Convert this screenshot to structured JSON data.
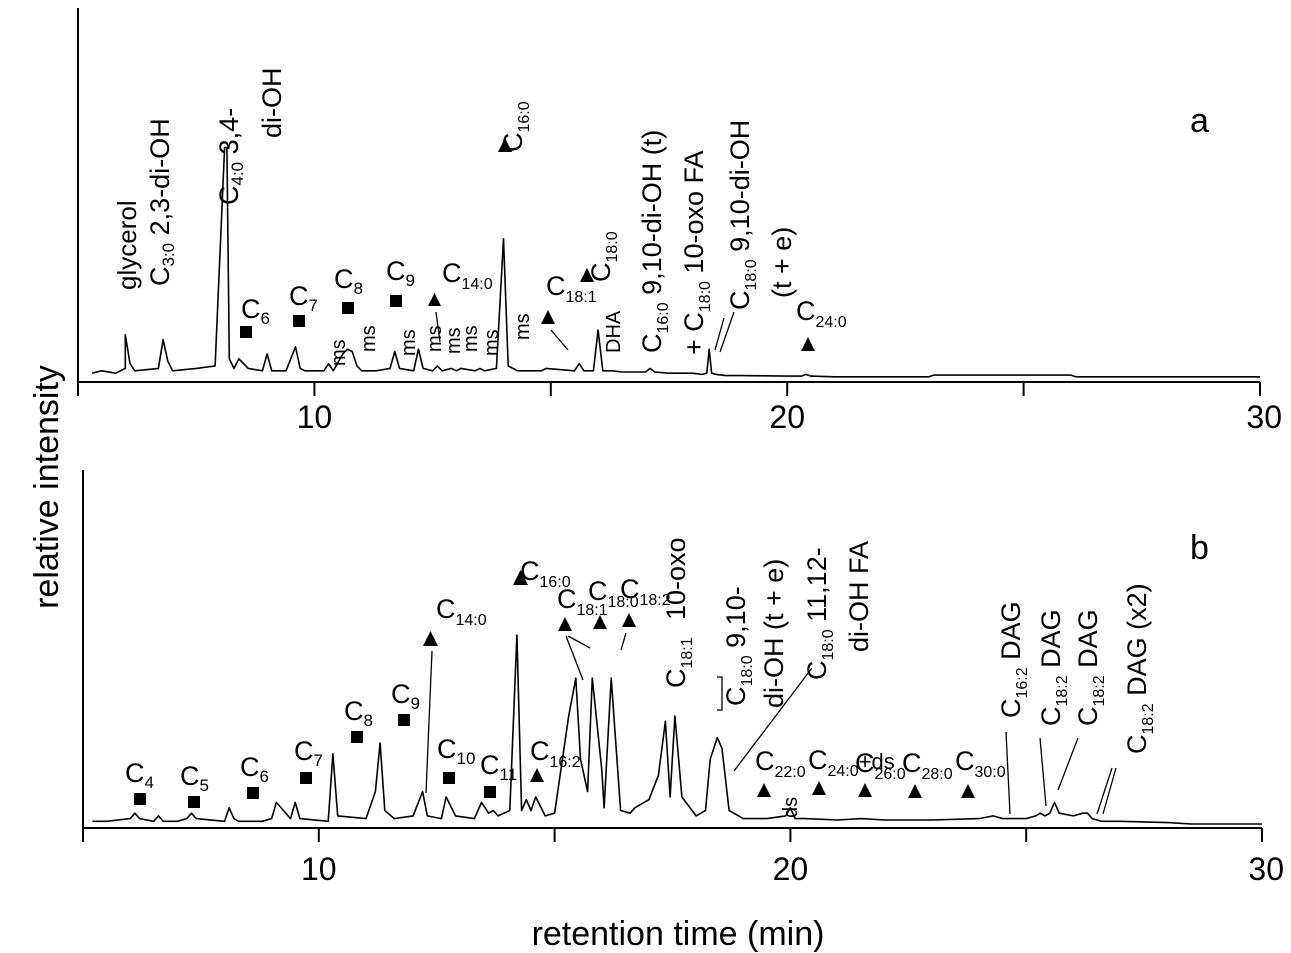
{
  "figure": {
    "ylabel": "relative intensity",
    "xlabel": "retention time (min)"
  },
  "chart_data": [
    {
      "type": "line",
      "panel_label": "a",
      "xlim": [
        5,
        30
      ],
      "xticks": [
        10,
        20,
        30
      ],
      "x": [
        5.3,
        5.5,
        5.8,
        6.0,
        6.0,
        6.1,
        6.2,
        6.7,
        6.8,
        6.9,
        7.0,
        7.5,
        7.9,
        8.1,
        8.15,
        8.2,
        8.3,
        8.4,
        8.5,
        8.6,
        8.9,
        9.0,
        9.1,
        9.4,
        9.6,
        9.7,
        9.8,
        10.2,
        10.3,
        10.4,
        10.6,
        10.7,
        10.8,
        10.9,
        11.0,
        11.3,
        11.6,
        11.7,
        11.8,
        12.1,
        12.2,
        12.3,
        12.5,
        12.6,
        12.7,
        12.9,
        13.0,
        13.1,
        13.4,
        13.5,
        13.6,
        13.85,
        14.0,
        14.1,
        14.3,
        14.8,
        14.9,
        15.5,
        15.6,
        15.7,
        15.9,
        16.0,
        16.1,
        16.3,
        16.5,
        17.0,
        17.1,
        17.2,
        17.5,
        18.0,
        18.2,
        18.3,
        18.35,
        18.4,
        18.5,
        18.7,
        19.0,
        20.0,
        20.3,
        20.4,
        20.5,
        21.0,
        23.0,
        23.1,
        26.0,
        26.1,
        28.0,
        30.0
      ],
      "y": [
        2,
        3,
        2,
        4,
        18,
        6,
        3,
        4,
        16,
        7,
        3,
        4,
        5,
        96,
        96,
        8,
        4,
        8,
        6,
        4,
        3,
        10,
        3,
        3,
        13,
        4,
        3,
        3,
        6,
        3,
        10,
        12,
        11,
        5,
        3,
        3,
        4,
        11,
        4,
        3,
        12,
        4,
        3,
        5,
        3,
        4,
        3,
        4,
        3,
        4,
        3,
        4,
        58,
        5,
        3,
        3,
        4,
        3,
        6,
        3,
        3,
        20,
        3,
        3,
        2.5,
        2.5,
        4,
        2.5,
        2,
        2,
        1.5,
        2,
        12,
        2,
        1.5,
        1,
        1,
        0.8,
        0.8,
        1.5,
        0.8,
        0.5,
        0.5,
        1.2,
        1.2,
        0.5,
        0.5,
        0.5
      ]
    },
    {
      "type": "line",
      "panel_label": "b",
      "xlim": [
        5,
        30
      ],
      "xticks": [
        10,
        20,
        30
      ],
      "x": [
        5.2,
        5.5,
        6.0,
        6.1,
        6.2,
        6.5,
        6.6,
        6.7,
        7.0,
        7.2,
        7.3,
        7.4,
        8.0,
        8.1,
        8.2,
        8.3,
        8.8,
        9.0,
        9.1,
        9.4,
        9.5,
        9.6,
        10.2,
        10.3,
        10.4,
        11.0,
        11.2,
        11.3,
        11.4,
        11.6,
        12.0,
        12.2,
        12.3,
        12.6,
        12.7,
        12.9,
        13.3,
        13.45,
        13.6,
        13.7,
        13.8,
        14.05,
        14.2,
        14.3,
        14.4,
        14.5,
        14.6,
        14.8,
        15.0,
        15.2,
        15.3,
        15.45,
        15.55,
        15.7,
        15.8,
        16.0,
        16.05,
        16.2,
        16.4,
        16.6,
        16.7,
        16.8,
        17.0,
        17.2,
        17.35,
        17.45,
        17.55,
        17.7,
        18.0,
        18.2,
        18.3,
        18.45,
        18.55,
        18.7,
        19.0,
        19.5,
        19.9,
        20.0,
        20.1,
        20.3,
        21.0,
        21.5,
        22.0,
        23.0,
        24.0,
        24.3,
        24.5,
        24.6,
        25.0,
        25.2,
        25.3,
        25.4,
        25.5,
        25.6,
        25.7,
        26.0,
        26.2,
        26.3,
        26.4,
        26.6,
        27.0,
        28.0,
        28.5,
        30.0
      ],
      "y": [
        1,
        1,
        2,
        4,
        2,
        1,
        3,
        1,
        1,
        2,
        4,
        2,
        1,
        6,
        2,
        1,
        1,
        2,
        8,
        2,
        8,
        2,
        1,
        26,
        3,
        2,
        12,
        30,
        5,
        2,
        3,
        12,
        3,
        2,
        10,
        3,
        2,
        8,
        4,
        5,
        3,
        5,
        70,
        5,
        9,
        5,
        10,
        3,
        4,
        28,
        40,
        54,
        24,
        12,
        54,
        20,
        6,
        54,
        5,
        4,
        6,
        7,
        9,
        18,
        38,
        10,
        40,
        10,
        3,
        5,
        24,
        32,
        28,
        5,
        2,
        2,
        3,
        6,
        2,
        2,
        1.5,
        2,
        1.5,
        1.5,
        2,
        3,
        2,
        2,
        2,
        3,
        4,
        3,
        4,
        8,
        4,
        3,
        4,
        4,
        2,
        1,
        1,
        0.5,
        0,
        0
      ]
    }
  ],
  "annotations_a": {
    "glycerol": "glycerol",
    "c": "C",
    "sub_3_0": "3:0",
    "dihydroxy_23": "2,3-di-OH",
    "sub_4_0": "4:0",
    "dihydroxy_34_l1": "3,4-",
    "dihydroxy_34_l2": "di-OH",
    "n6": "6",
    "n7": "7",
    "n8": "8",
    "n9": "9",
    "sub_14_0": "14:0",
    "sub_16_0": "16:0",
    "sub_18_0": "18:0",
    "sub_18_1": "18:1",
    "sub_24_0": "24:0",
    "ms": "ms",
    "dha": "DHA",
    "diOH_910_t": "9,10-di-OH (t)",
    "plus": "+ C",
    "oxo_fa": "10-oxo FA",
    "diOH_910": "9,10-di-OH",
    "te": "(t + e)",
    "panel": "a"
  },
  "annotations_b": {
    "c": "C",
    "n4": "4",
    "n5": "5",
    "n6": "6",
    "n7": "7",
    "n8": "8",
    "n9": "9",
    "n10": "10",
    "n11": "11",
    "sub_14_0": "14:0",
    "sub_16_0": "16:0",
    "sub_16_2": "16:2",
    "sub_18_1": "18:1",
    "sub_18_0": "18:0",
    "sub_18_2": "18:2",
    "sub_22_0": "22:0",
    "sub_24_0": "24:0",
    "ds_suffix": "+ds",
    "sub_26_0": "26:0",
    "sub_28_0": "28:0",
    "sub_30_0": "30:0",
    "oxo": "10-oxo",
    "diOH_910_l1": "9,10-",
    "diOH_910_l2": "di-OH (t + e)",
    "diOH_1112_l1": "11,12-",
    "diOH_1112_l2": "di-OH FA",
    "ds": "ds",
    "dag": "DAG",
    "dag_x2": "DAG (x2)",
    "panel": "b"
  }
}
